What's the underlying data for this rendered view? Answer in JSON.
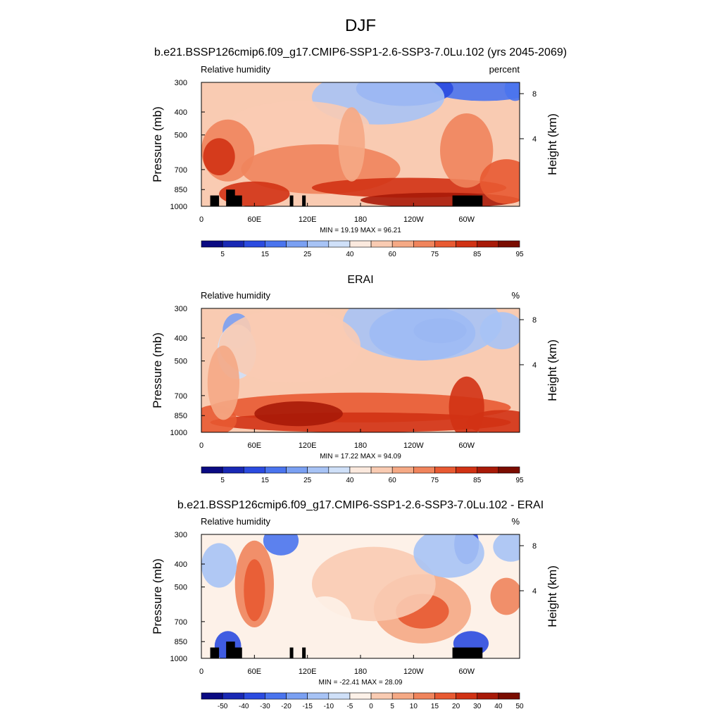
{
  "figure": {
    "title": "DJF",
    "subtitle": "b.e21.BSSP126cmip6.f09_g17.CMIP6-SSP1-2.6-SSP3-7.0Lu.102 (yrs 2045-2069)"
  },
  "colors": {
    "rh_scale": [
      "#0a0a82",
      "#1928b4",
      "#2b4be0",
      "#4a74ee",
      "#7aa0f2",
      "#a7c3f5",
      "#cfe0f8",
      "#fbe9de",
      "#f9cbb2",
      "#f5a985",
      "#f0845c",
      "#e85a32",
      "#d13214",
      "#a81a08",
      "#7a0c00"
    ],
    "diff_scale": [
      "#0a0a82",
      "#1928b4",
      "#2b4be0",
      "#4a74ee",
      "#7aa0f2",
      "#a7c3f5",
      "#cfe0f8",
      "#fdf1e8",
      "#f9cbb2",
      "#f5a985",
      "#f0845c",
      "#e85a32",
      "#d13214",
      "#a81a08",
      "#7a0c00"
    ],
    "terrain": "#000000"
  },
  "chart_data": [
    {
      "type": "heatmap",
      "title": "",
      "left_label": "Relative humidity",
      "right_label": "percent",
      "ylabel": "Pressure (mb)",
      "y2label": "Height (km)",
      "xlabel": "",
      "x_ticks": [
        "0",
        "60E",
        "120E",
        "180",
        "120W",
        "60W"
      ],
      "x_tick_values": [
        0,
        60,
        120,
        180,
        240,
        300
      ],
      "xlim": [
        0,
        360
      ],
      "y_ticks": [
        "300",
        "400",
        "500",
        "700",
        "850",
        "1000"
      ],
      "y_tick_values": [
        300,
        400,
        500,
        700,
        850,
        1000
      ],
      "ylim": [
        1000,
        300
      ],
      "y2_ticks": [
        "4",
        "8"
      ],
      "y2_tick_values": [
        4,
        8
      ],
      "stats": "MIN =  19.19  MAX =  96.21",
      "min": 19.19,
      "max": 96.21,
      "colorbar_labels": [
        "5",
        "15",
        "25",
        "40",
        "60",
        "75",
        "85",
        "95"
      ],
      "levels": [
        5,
        10,
        15,
        20,
        25,
        30,
        40,
        50,
        60,
        70,
        75,
        80,
        85,
        90,
        95
      ],
      "terrain_blocks": [
        [
          10,
          900
        ],
        [
          28,
          850
        ],
        [
          36,
          900
        ],
        [
          100,
          900
        ],
        [
          114,
          900
        ],
        [
          284,
          900
        ]
      ]
    },
    {
      "type": "heatmap",
      "title": "ERAI",
      "left_label": "Relative humidity",
      "right_label": "%",
      "ylabel": "Pressure (mb)",
      "y2label": "Height (km)",
      "xlabel": "",
      "x_ticks": [
        "0",
        "60E",
        "120E",
        "180",
        "120W",
        "60W"
      ],
      "x_tick_values": [
        0,
        60,
        120,
        180,
        240,
        300
      ],
      "xlim": [
        0,
        360
      ],
      "y_ticks": [
        "300",
        "400",
        "500",
        "700",
        "850",
        "1000"
      ],
      "y_tick_values": [
        300,
        400,
        500,
        700,
        850,
        1000
      ],
      "ylim": [
        1000,
        300
      ],
      "y2_ticks": [
        "4",
        "8"
      ],
      "y2_tick_values": [
        4,
        8
      ],
      "stats": "MIN =  17.22  MAX =  94.09",
      "min": 17.22,
      "max": 94.09,
      "colorbar_labels": [
        "5",
        "15",
        "25",
        "40",
        "60",
        "75",
        "85",
        "95"
      ],
      "levels": [
        5,
        10,
        15,
        20,
        25,
        30,
        40,
        50,
        60,
        70,
        75,
        80,
        85,
        90,
        95
      ],
      "terrain_blocks": []
    },
    {
      "type": "heatmap",
      "title": "b.e21.BSSP126cmip6.f09_g17.CMIP6-SSP1-2.6-SSP3-7.0Lu.102 - ERAI",
      "left_label": "Relative humidity",
      "right_label": "%",
      "ylabel": "Pressure (mb)",
      "y2label": "Height (km)",
      "xlabel": "",
      "x_ticks": [
        "0",
        "60E",
        "120E",
        "180",
        "120W",
        "60W"
      ],
      "x_tick_values": [
        0,
        60,
        120,
        180,
        240,
        300
      ],
      "xlim": [
        0,
        360
      ],
      "y_ticks": [
        "300",
        "400",
        "500",
        "700",
        "850",
        "1000"
      ],
      "y_tick_values": [
        300,
        400,
        500,
        700,
        850,
        1000
      ],
      "ylim": [
        1000,
        300
      ],
      "y2_ticks": [
        "4",
        "8"
      ],
      "y2_tick_values": [
        4,
        8
      ],
      "stats": "MIN = -22.41  MAX =  28.09",
      "min": -22.41,
      "max": 28.09,
      "colorbar_labels": [
        "-50",
        "-40",
        "-30",
        "-20",
        "-15",
        "-10",
        "-5",
        "0",
        "5",
        "10",
        "15",
        "20",
        "30",
        "40",
        "50"
      ],
      "levels": [
        -50,
        -40,
        -30,
        -20,
        -15,
        -10,
        -5,
        0,
        5,
        10,
        15,
        20,
        30,
        40,
        50
      ],
      "terrain_blocks": [
        [
          10,
          900
        ],
        [
          28,
          850
        ],
        [
          36,
          900
        ],
        [
          100,
          900
        ],
        [
          114,
          900
        ],
        [
          284,
          900
        ]
      ]
    }
  ]
}
